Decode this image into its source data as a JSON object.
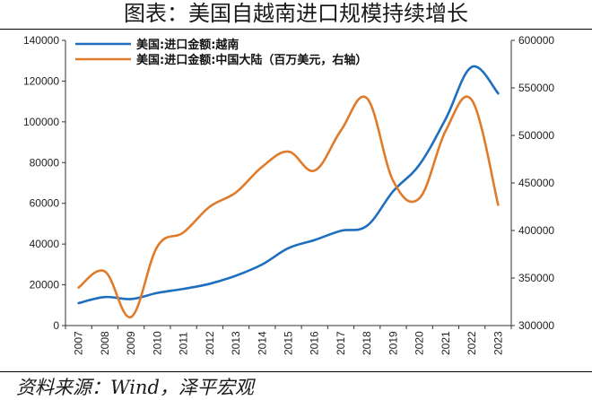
{
  "header": {
    "title": "图表：美国自越南进口规模持续增长"
  },
  "footer": {
    "source": "资料来源：Wind，泽平宏观"
  },
  "chart_data": {
    "type": "line",
    "title": "图表：美国自越南进口规模持续增长",
    "x": [
      "2007",
      "2008",
      "2009",
      "2010",
      "2011",
      "2012",
      "2013",
      "2014",
      "2015",
      "2016",
      "2017",
      "2018",
      "2019",
      "2020",
      "2021",
      "2022",
      "2023"
    ],
    "series": [
      {
        "name": "美国:进口金额:越南",
        "axis": "left",
        "color": "#1f6fbf",
        "values": [
          11000,
          14000,
          13000,
          16000,
          18000,
          20500,
          24500,
          30000,
          38000,
          42000,
          46500,
          49000,
          66000,
          79000,
          101500,
          127000,
          114000
        ]
      },
      {
        "name": "美国:进口金额:中国大陆（百万美元，右轴）",
        "axis": "right",
        "color": "#e07b2a",
        "values": [
          340000,
          357000,
          309000,
          383000,
          398000,
          425000,
          440000,
          467000,
          483000,
          463000,
          505000,
          539000,
          452000,
          434000,
          505000,
          537000,
          427000
        ]
      }
    ],
    "y_left": {
      "min": 0,
      "max": 140000,
      "ticks": [
        0,
        20000,
        40000,
        60000,
        80000,
        100000,
        120000,
        140000
      ]
    },
    "y_right": {
      "min": 300000,
      "max": 600000,
      "ticks": [
        300000,
        350000,
        400000,
        450000,
        500000,
        550000,
        600000
      ]
    },
    "grid": false,
    "legend": "top-left"
  }
}
